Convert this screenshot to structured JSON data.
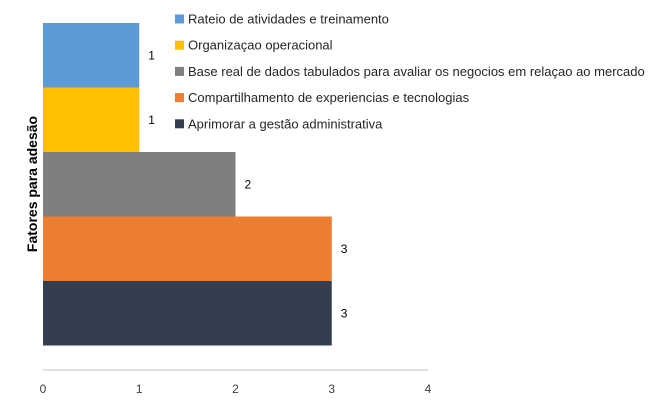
{
  "chart_data": {
    "type": "bar",
    "orientation": "horizontal",
    "title": "",
    "xlabel": "",
    "ylabel": "Fatores para adesão",
    "xlim": [
      0,
      4
    ],
    "x_ticks": [
      "0",
      "1",
      "2",
      "3",
      "4"
    ],
    "grid": false,
    "legend_position": "top-right",
    "bar_gap": 0,
    "categories": [
      "Rateio de atividades e treinamento",
      "Organizaçao operacional",
      "Base real de dados tabulados para avaliar os negocios em relaçao ao mercado",
      "Compartilhamento de experiencias e tecnologias",
      "Aprimorar a gestão administrativa"
    ],
    "values": [
      1,
      1,
      2,
      3,
      3
    ],
    "data_labels": [
      "1",
      "1",
      "2",
      "3",
      "3"
    ],
    "colors": [
      "#5b9bd5",
      "#ffc000",
      "#7f7f7f",
      "#ed7d31",
      "#333f50"
    ]
  }
}
